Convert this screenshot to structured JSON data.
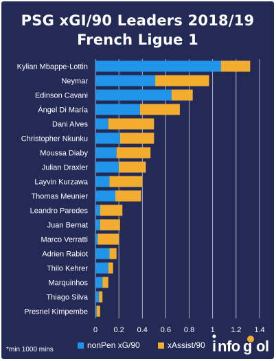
{
  "title_line1": "PSG xGI/90 Leaders 2018/19",
  "title_line2": "French Ligue 1",
  "footnote": "*min 1000 mins",
  "logo_text": "infogol",
  "colors": {
    "background": "#242a56",
    "nonpen": "#1f94e8",
    "xassist": "#f2ac30",
    "text": "#ffffff",
    "grid": "#ffffff"
  },
  "chart_data": {
    "type": "bar",
    "orientation": "horizontal",
    "stacked": true,
    "title": "PSG xGI/90 Leaders 2018/19 French Ligue 1",
    "categories": [
      "Kylian Mbappe-Lottin",
      "Neymar",
      "Edinson Cavani",
      "Ángel Di María",
      "Dani Alves",
      "Christopher Nkunku",
      "Moussa Diaby",
      "Julian Draxler",
      "Layvin Kurzawa",
      "Thomas Meunier",
      "Leandro Paredes",
      "Juan Bernat",
      "Marco Verratti",
      "Adrien Rabiot",
      "Thilo Kehrer",
      "Marquinhos",
      "Thiago Silva",
      "Presnel Kimpembe"
    ],
    "series": [
      {
        "name": "nonPen xG/90",
        "values": [
          1.07,
          0.51,
          0.65,
          0.38,
          0.11,
          0.21,
          0.18,
          0.2,
          0.12,
          0.17,
          0.04,
          0.04,
          0.02,
          0.12,
          0.11,
          0.06,
          0.03,
          0.01
        ]
      },
      {
        "name": "xAssist/90",
        "values": [
          0.25,
          0.46,
          0.18,
          0.34,
          0.39,
          0.29,
          0.29,
          0.23,
          0.28,
          0.22,
          0.19,
          0.17,
          0.18,
          0.06,
          0.04,
          0.05,
          0.03,
          0.03
        ]
      }
    ],
    "xlim": [
      0,
      1.4
    ],
    "xticks": [
      "0",
      "0.2",
      "0.4",
      "0.6",
      "0.8",
      "1",
      "1.2",
      "1.4"
    ],
    "grid": true,
    "legend": "bottom"
  }
}
